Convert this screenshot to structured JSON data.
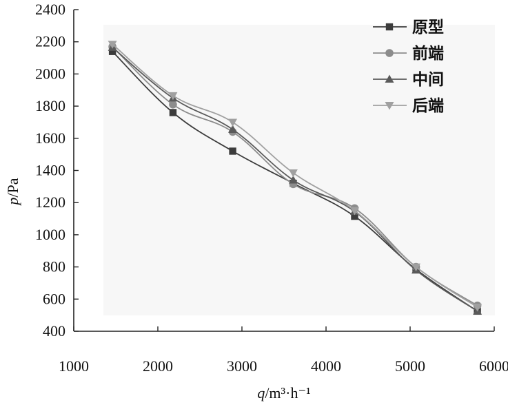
{
  "chart_data": {
    "type": "line",
    "title": "",
    "xlabel": {
      "var": "q",
      "unit": "/m³·h⁻¹"
    },
    "ylabel": {
      "var": "p",
      "unit": "/Pa"
    },
    "xlim": [
      1000,
      6000
    ],
    "ylim": [
      400,
      2400
    ],
    "xticks": [
      1000,
      2000,
      3000,
      4000,
      5000,
      6000
    ],
    "yticks": [
      400,
      600,
      800,
      1000,
      1200,
      1400,
      1600,
      1800,
      2000,
      2200,
      2400
    ],
    "grid": false,
    "legend_position": "top-right",
    "x": [
      1460,
      2180,
      2890,
      3610,
      4340,
      5070,
      5800
    ],
    "series": [
      {
        "name": "原型",
        "marker": "square",
        "color": "#3c3c3c",
        "values": [
          2140,
          1760,
          1520,
          1320,
          1115,
          785,
          525
        ]
      },
      {
        "name": "前端",
        "marker": "circle",
        "color": "#8c8c8c",
        "values": [
          2170,
          1810,
          1640,
          1315,
          1165,
          800,
          560
        ]
      },
      {
        "name": "中间",
        "marker": "triangle-up",
        "color": "#5a5a5a",
        "values": [
          2165,
          1850,
          1655,
          1340,
          1145,
          780,
          525
        ]
      },
      {
        "name": "后端",
        "marker": "triangle-down",
        "color": "#a0a0a0",
        "values": [
          2185,
          1865,
          1700,
          1385,
          1150,
          800,
          550
        ]
      }
    ]
  }
}
